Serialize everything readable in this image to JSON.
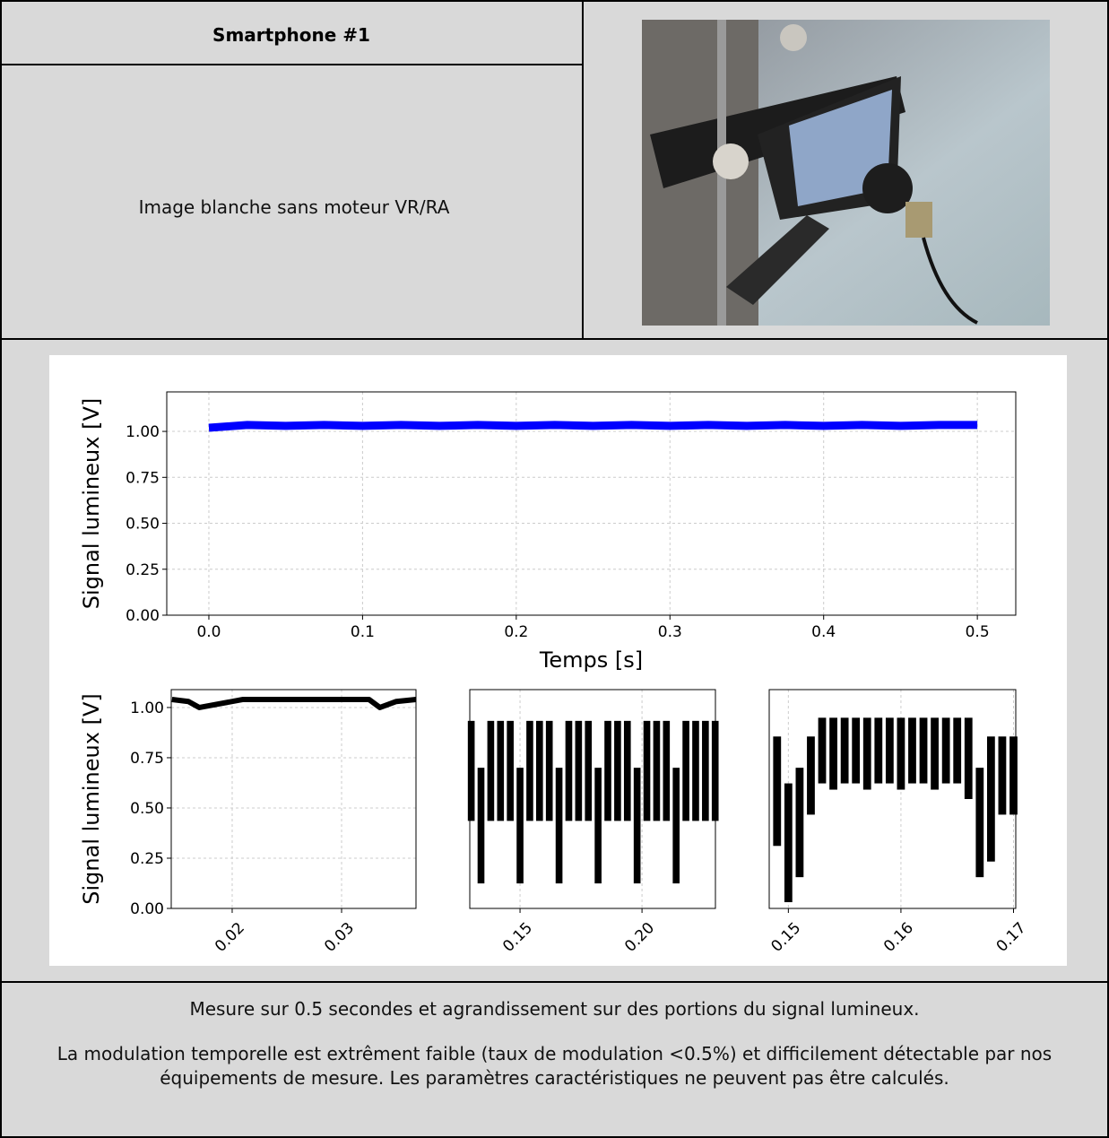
{
  "header": {
    "title": "Smartphone #1",
    "description": "Image blanche sans moteur VR/RA"
  },
  "figure": {
    "charts": [
      {
        "type": "line",
        "ylabel": "Signal lumineux [V]",
        "xlabel": "Temps [s]",
        "color": "#0000ff",
        "grid": true,
        "xlim": [
          -0.0274,
          0.525
        ],
        "ylim": [
          0,
          1.215
        ],
        "xticks": [
          {
            "value": 0,
            "label": "0.0"
          },
          0.1,
          0.2,
          0.3,
          0.4,
          0.5
        ],
        "yticks": [
          {
            "value": 0,
            "label": "0.00"
          },
          {
            "value": 0.25,
            "label": "0.25"
          },
          {
            "value": 0.5,
            "label": "0.50"
          },
          {
            "value": 0.75,
            "label": "0.75"
          },
          {
            "value": 1,
            "label": "1.00"
          }
        ],
        "x": [
          0,
          0.025,
          0.05,
          0.075,
          0.1,
          0.125,
          0.15,
          0.175,
          0.2,
          0.225,
          0.25,
          0.275,
          0.3,
          0.325,
          0.35,
          0.375,
          0.4,
          0.425,
          0.45,
          0.475,
          0.5
        ],
        "values": [
          1.02,
          1.035,
          1.03,
          1.035,
          1.03,
          1.035,
          1.03,
          1.035,
          1.03,
          1.035,
          1.03,
          1.035,
          1.03,
          1.035,
          1.03,
          1.035,
          1.03,
          1.035,
          1.03,
          1.035,
          1.035
        ]
      },
      {
        "type": "line",
        "ylabel": "Signal lumineux [V]",
        "color": "#000000",
        "grid": true,
        "xlim": [
          0.01443,
          0.0368
        ],
        "ylim": [
          0,
          1.089
        ],
        "xticks": [
          0.02,
          0.03
        ],
        "yticks": [
          {
            "value": 0,
            "label": "0.00"
          },
          {
            "value": 0.25,
            "label": "0.25"
          },
          {
            "value": 0.5,
            "label": "0.50"
          },
          {
            "value": 0.75,
            "label": "0.75"
          },
          {
            "value": 1,
            "label": "1.00"
          }
        ],
        "x": [
          0.0145,
          0.016,
          0.017,
          0.019,
          0.021,
          0.025,
          0.03,
          0.0325,
          0.0335,
          0.035,
          0.0368
        ],
        "values": [
          1.04,
          1.03,
          1.0,
          1.02,
          1.04,
          1.04,
          1.04,
          1.04,
          1.0,
          1.03,
          1.04
        ]
      },
      {
        "type": "band",
        "color": "#000000",
        "grid": true,
        "xlim": [
          0.1294,
          0.2301
        ],
        "ylim": [
          0.99,
          1.06
        ],
        "xticks": [
          0.15,
          {
            "value": 0.2,
            "label": "0.20"
          }
        ],
        "x": [
          0.13,
          0.134,
          0.138,
          0.142,
          0.146,
          0.15,
          0.154,
          0.158,
          0.162,
          0.166,
          0.17,
          0.174,
          0.178,
          0.182,
          0.186,
          0.19,
          0.194,
          0.198,
          0.202,
          0.206,
          0.21,
          0.214,
          0.218,
          0.222,
          0.226,
          0.23
        ],
        "min": [
          1.018,
          0.998,
          1.018,
          1.018,
          1.018,
          0.998,
          1.018,
          1.018,
          1.018,
          0.998,
          1.018,
          1.018,
          1.018,
          0.998,
          1.018,
          1.018,
          1.018,
          0.998,
          1.018,
          1.018,
          1.018,
          0.998,
          1.018,
          1.018,
          1.018,
          1.018
        ],
        "max": [
          1.05,
          1.035,
          1.05,
          1.05,
          1.05,
          1.035,
          1.05,
          1.05,
          1.05,
          1.035,
          1.05,
          1.05,
          1.05,
          1.035,
          1.05,
          1.05,
          1.05,
          1.035,
          1.05,
          1.05,
          1.05,
          1.035,
          1.05,
          1.05,
          1.05,
          1.05
        ]
      },
      {
        "type": "band",
        "color": "#000000",
        "grid": true,
        "xlim": [
          0.1483,
          0.1702
        ],
        "ylim": [
          0.99,
          1.06
        ],
        "xticks": [
          0.15,
          0.16,
          0.17
        ],
        "x": [
          0.149,
          0.15,
          0.151,
          0.152,
          0.153,
          0.154,
          0.155,
          0.156,
          0.157,
          0.158,
          0.159,
          0.16,
          0.161,
          0.162,
          0.163,
          0.164,
          0.165,
          0.166,
          0.167,
          0.168,
          0.169,
          0.17
        ],
        "min": [
          1.01,
          0.992,
          1.0,
          1.02,
          1.03,
          1.028,
          1.03,
          1.03,
          1.028,
          1.03,
          1.03,
          1.028,
          1.03,
          1.03,
          1.028,
          1.03,
          1.03,
          1.025,
          1.0,
          1.005,
          1.02,
          1.02
        ],
        "max": [
          1.045,
          1.03,
          1.035,
          1.045,
          1.051,
          1.051,
          1.051,
          1.051,
          1.051,
          1.051,
          1.051,
          1.051,
          1.051,
          1.051,
          1.051,
          1.051,
          1.051,
          1.051,
          1.035,
          1.045,
          1.045,
          1.045
        ]
      }
    ]
  },
  "footer": {
    "paragraphs": [
      "Mesure sur 0.5 secondes et agrandissement sur des portions du signal lumineux.",
      "La modulation temporelle est extrêment faible (taux de modulation <0.5%) et difficilement détectable par nos équipements de mesure. Les paramètres caractéristiques ne peuvent pas être calculés."
    ]
  }
}
